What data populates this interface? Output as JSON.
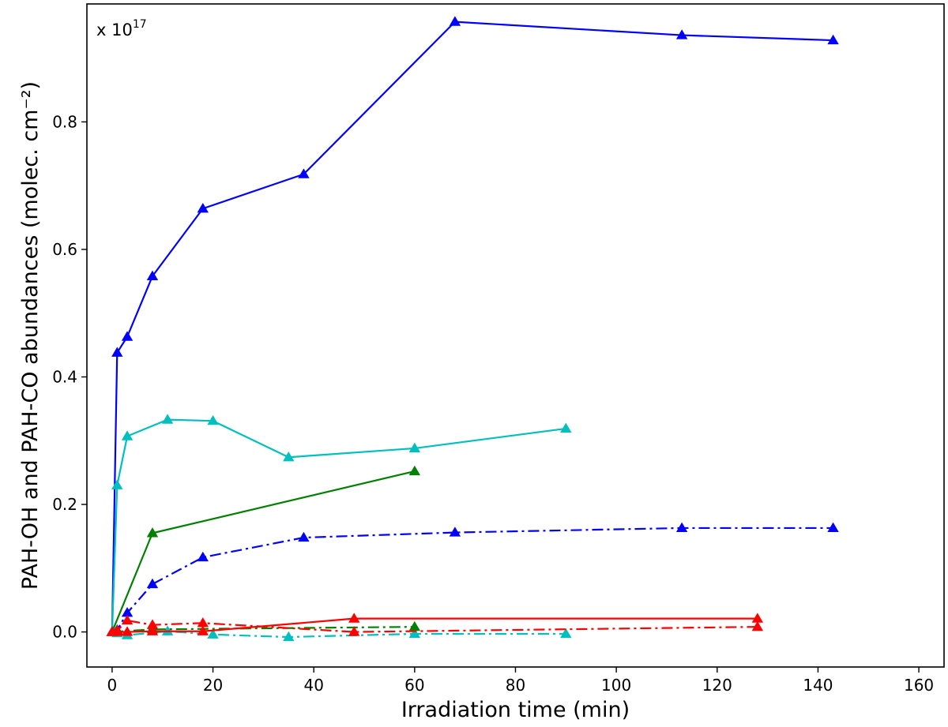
{
  "chart_data": {
    "type": "line",
    "xlabel": "Irradiation time (min)",
    "ylabel": "PAH-OH and PAH-CO abundances (molec. cm⁻²)",
    "scale_note": {
      "prefix": "x 10",
      "exponent": "17"
    },
    "xlim": [
      -5,
      165
    ],
    "ylim": [
      -0.055,
      0.985
    ],
    "x_ticks": [
      0,
      20,
      40,
      60,
      80,
      100,
      120,
      140,
      160
    ],
    "y_ticks": [
      0.0,
      0.2,
      0.4,
      0.6,
      0.8
    ],
    "x_tick_labels": [
      "0",
      "20",
      "40",
      "60",
      "80",
      "100",
      "120",
      "140",
      "160"
    ],
    "y_tick_labels": [
      "0.0",
      "0.2",
      "0.4",
      "0.6",
      "0.8"
    ],
    "grid": false,
    "legend": "none",
    "marker": "triangle-up",
    "series": [
      {
        "color": "#0000ff",
        "linestyle": "solid",
        "x": [
          0,
          1,
          3,
          8,
          18,
          38,
          68,
          113,
          143
        ],
        "y": [
          0.0,
          0.438,
          0.463,
          0.558,
          0.664,
          0.718,
          0.957,
          0.936,
          0.928
        ]
      },
      {
        "color": "#0000ff",
        "linestyle": "dashdot",
        "x": [
          0,
          1,
          3,
          8,
          18,
          38,
          68,
          113,
          143
        ],
        "y": [
          0.0,
          0.003,
          0.03,
          0.075,
          0.117,
          0.148,
          0.156,
          0.163,
          0.163
        ]
      },
      {
        "color": "#00bfbf",
        "linestyle": "solid",
        "x": [
          0,
          1,
          3,
          11,
          20,
          35,
          60,
          90
        ],
        "y": [
          0.0,
          0.23,
          0.307,
          0.333,
          0.331,
          0.274,
          0.288,
          0.319
        ]
      },
      {
        "color": "#00bfbf",
        "linestyle": "dashdot",
        "x": [
          0,
          1,
          3,
          11,
          20,
          35,
          60,
          90
        ],
        "y": [
          0.0,
          -0.002,
          -0.005,
          0.001,
          -0.004,
          -0.008,
          -0.003,
          -0.003
        ]
      },
      {
        "color": "#008000",
        "linestyle": "solid",
        "x": [
          0,
          8,
          60
        ],
        "y": [
          0.0,
          0.155,
          0.252
        ]
      },
      {
        "color": "#008000",
        "linestyle": "dashdot",
        "x": [
          0,
          8,
          60
        ],
        "y": [
          0.0,
          0.004,
          0.008
        ]
      },
      {
        "color": "#ff0000",
        "linestyle": "solid",
        "x": [
          0,
          1,
          3,
          8,
          18,
          48,
          128
        ],
        "y": [
          0.0,
          0.0,
          0.0,
          0.001,
          0.001,
          0.021,
          0.021
        ]
      },
      {
        "color": "#ff0000",
        "linestyle": "dashdot",
        "x": [
          0,
          1,
          3,
          8,
          18,
          48,
          128
        ],
        "y": [
          0.0,
          0.002,
          0.018,
          0.011,
          0.014,
          0.0,
          0.008
        ]
      }
    ]
  }
}
